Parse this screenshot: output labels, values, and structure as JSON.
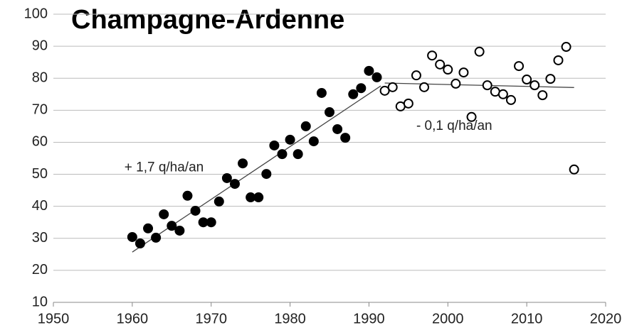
{
  "chart_data": {
    "type": "scatter",
    "title": "Champagne-Ardenne",
    "annotations": [
      {
        "text": "+ 1,7 q/ha/an",
        "x": 1959,
        "y": 52
      },
      {
        "text": "- 0,1 q/ha/an",
        "x": 1996,
        "y": 65
      }
    ],
    "series": [
      {
        "color": "#000000",
        "fill": "#000000",
        "x": [
          1960,
          1961,
          1962,
          1963,
          1964,
          1965,
          1966,
          1967,
          1968,
          1969,
          1970,
          1971,
          1972,
          1973,
          1974,
          1975,
          1976,
          1977,
          1978,
          1979,
          1980,
          1981,
          1982,
          1983,
          1984,
          1985,
          1986,
          1987,
          1988,
          1989,
          1990,
          1991
        ],
        "values": [
          30.4,
          28.4,
          33.1,
          30.2,
          37.5,
          33.9,
          32.4,
          43.3,
          38.6,
          35.0,
          35.0,
          41.5,
          48.8,
          47.0,
          53.4,
          42.8,
          42.8,
          50.1,
          59.0,
          56.3,
          60.8,
          56.3,
          65.0,
          60.3,
          75.4,
          69.4,
          64.1,
          61.4,
          75.0,
          76.9,
          82.3,
          80.3
        ]
      },
      {
        "color": "#000000",
        "fill": "#ffffff",
        "x": [
          1992,
          1993,
          1994,
          1995,
          1996,
          1997,
          1998,
          1999,
          2000,
          2001,
          2002,
          2003,
          2004,
          2005,
          2006,
          2007,
          2008,
          2009,
          2010,
          2011,
          2012,
          2013,
          2014,
          2015,
          2016
        ],
        "values": [
          76.1,
          77.2,
          71.2,
          72.1,
          80.9,
          77.2,
          87.1,
          84.3,
          82.7,
          78.3,
          81.8,
          67.9,
          88.3,
          77.8,
          75.8,
          75.0,
          73.2,
          83.8,
          79.6,
          77.8,
          74.7,
          79.8,
          85.6,
          89.8,
          51.5
        ]
      }
    ],
    "trendlines": [
      {
        "color": "#444444",
        "x": [
          1960,
          1991.5
        ],
        "values": [
          25.7,
          77.6
        ]
      },
      {
        "color": "#444444",
        "x": [
          1992,
          2016
        ],
        "values": [
          78.5,
          77.1
        ]
      }
    ],
    "xlim": [
      1950,
      2020
    ],
    "xticks": [
      1950,
      1960,
      1970,
      1980,
      1990,
      2000,
      2010,
      2020
    ],
    "ylim": [
      10,
      100
    ],
    "yticks": [
      10,
      20,
      30,
      40,
      50,
      60,
      70,
      80,
      90,
      100
    ],
    "grid": true
  }
}
